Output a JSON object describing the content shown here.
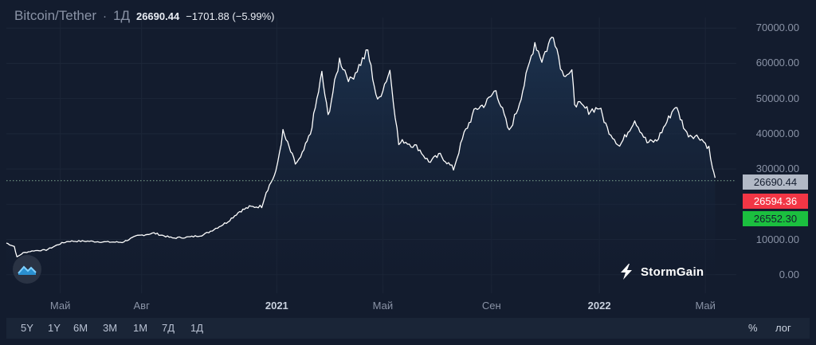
{
  "header": {
    "symbol": "Bitcoin/Tether",
    "separator": "·",
    "timeframe": "1Д",
    "price": "26690.44",
    "change": "−1701.88 (−5.99%)"
  },
  "brand": {
    "name": "StormGain"
  },
  "price_labels": [
    {
      "value": 26690.44,
      "label": "26690.44",
      "bg": "#b2b9c6",
      "fg": "#131c2e"
    },
    {
      "value": 26594.36,
      "label": "26594.36",
      "bg": "#f23645",
      "fg": "#ffffff"
    },
    {
      "value": 26552.3,
      "label": "26552.30",
      "bg": "#1bbf3f",
      "fg": "#131c2e"
    }
  ],
  "toolbar": {
    "ranges": [
      "5Y",
      "1Y",
      "6M",
      "3M",
      "1M",
      "7Д",
      "1Д"
    ],
    "percent": "%",
    "log": "лог"
  },
  "colors": {
    "background": "#131c2e",
    "line": "#ffffff",
    "area_top": "#1c3350",
    "dotted": "#7fa58f"
  },
  "chart_data": {
    "type": "area",
    "x_tick_labels": [
      {
        "label": "Май",
        "date": "2020-05-01",
        "bold": false
      },
      {
        "label": "Авг",
        "date": "2020-08-01",
        "bold": false
      },
      {
        "label": "2021",
        "date": "2021-01-01",
        "bold": true
      },
      {
        "label": "Май",
        "date": "2021-05-01",
        "bold": false
      },
      {
        "label": "Сен",
        "date": "2021-09-01",
        "bold": false
      },
      {
        "label": "2022",
        "date": "2022-01-01",
        "bold": true
      },
      {
        "label": "Май",
        "date": "2022-05-01",
        "bold": false
      }
    ],
    "y_ticks": [
      "0.00",
      "10000.00",
      "20000.00",
      "30000.00",
      "40000.00",
      "50000.00",
      "60000.00",
      "70000.00"
    ],
    "y_tick_values": [
      0,
      10000,
      20000,
      30000,
      40000,
      50000,
      60000,
      70000
    ],
    "ylim": [
      -3000,
      73000
    ],
    "xlim": [
      "2020-03-01",
      "2022-06-05"
    ],
    "series": [
      {
        "x": [
          "2020-03-01",
          "2020-03-10",
          "2020-03-13",
          "2020-03-20",
          "2020-04-01",
          "2020-04-15",
          "2020-05-01",
          "2020-05-10",
          "2020-06-01",
          "2020-06-20",
          "2020-07-10",
          "2020-07-27",
          "2020-08-15",
          "2020-09-05",
          "2020-09-25",
          "2020-10-10",
          "2020-10-22",
          "2020-11-05",
          "2020-11-20",
          "2020-12-01",
          "2020-12-15",
          "2020-12-20",
          "2020-12-31",
          "2021-01-08",
          "2021-01-15",
          "2021-01-22",
          "2021-01-28",
          "2021-02-08",
          "2021-02-21",
          "2021-02-28",
          "2021-03-13",
          "2021-03-25",
          "2021-04-14",
          "2021-04-25",
          "2021-05-09",
          "2021-05-19",
          "2021-05-25",
          "2021-06-10",
          "2021-06-22",
          "2021-07-05",
          "2021-07-20",
          "2021-08-01",
          "2021-08-14",
          "2021-08-25",
          "2021-09-06",
          "2021-09-21",
          "2021-10-01",
          "2021-10-08",
          "2021-10-20",
          "2021-10-28",
          "2021-11-10",
          "2021-11-20",
          "2021-12-01",
          "2021-12-04",
          "2021-12-20",
          "2022-01-01",
          "2022-01-10",
          "2022-01-24",
          "2022-02-10",
          "2022-02-24",
          "2022-03-07",
          "2022-03-28",
          "2022-04-10",
          "2022-04-25",
          "2022-05-05",
          "2022-05-09",
          "2022-05-12"
        ],
        "y": [
          9000,
          8000,
          5000,
          6200,
          6800,
          7000,
          8800,
          9500,
          9500,
          9300,
          9200,
          11000,
          11800,
          10400,
          10700,
          11300,
          12900,
          14800,
          18000,
          19200,
          19400,
          23500,
          29000,
          40500,
          36000,
          31500,
          33000,
          40000,
          57000,
          45000,
          61000,
          55000,
          63500,
          49000,
          58000,
          37000,
          38000,
          36000,
          32000,
          34000,
          30000,
          40000,
          47000,
          48500,
          52500,
          40500,
          47500,
          54000,
          66000,
          61000,
          68500,
          57500,
          57000,
          49000,
          46500,
          47500,
          41500,
          36500,
          44000,
          37500,
          38000,
          48000,
          40000,
          39000,
          36000,
          30000,
          27500
        ]
      }
    ]
  }
}
